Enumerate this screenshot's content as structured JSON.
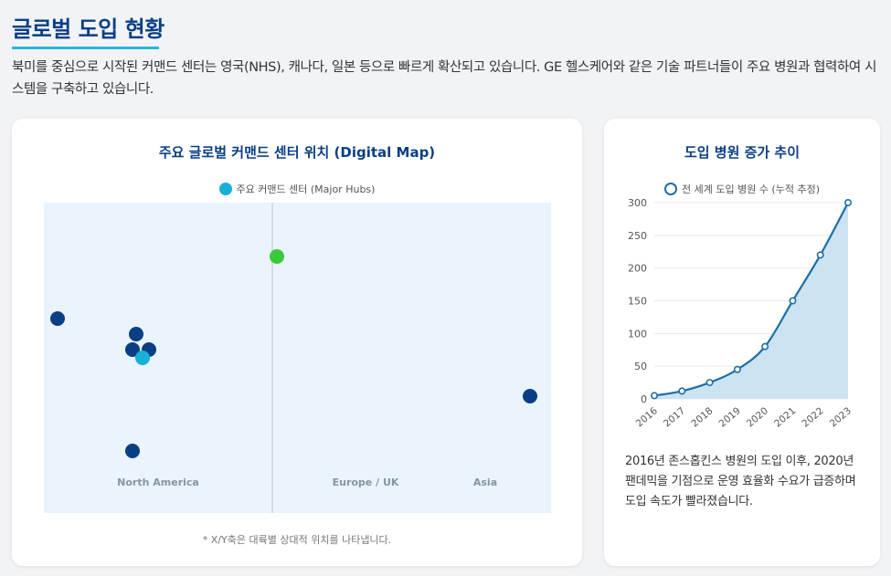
{
  "page": {
    "title": "글로벌 도입 현황",
    "intro": "북미를 중심으로 시작된 커맨드 센터는 영국(NHS), 캐나다, 일본 등으로 빠르게 확산되고 있습니다. GE 헬스케어와 같은 기술 파트너들이 주요 병원과 협력하여 시스템을 구축하고 있습니다."
  },
  "map_card": {
    "title": "주요 글로벌 커맨드 센터 위치 (Digital Map)",
    "legend": "주요 커맨드 센터 (Major Hubs)",
    "regions": [
      "North America",
      "Europe / UK",
      "Asia"
    ],
    "note": "* X/Y축은 대륙별 상대적 위치를 나타냅니다.",
    "colors": {
      "hub_primary": "#0a3f86",
      "hub_legend": "#16b0d8",
      "hub_highlight": "#3cc83c",
      "background": "#eaf4fc"
    }
  },
  "trend_card": {
    "title": "도입 병원 증가 추이",
    "description": "2016년 존스홉킨스 병원의 도입 이후, 2020년 팬데믹을 기점으로 운영 효율화 수요가 급증하며 도입 속도가 빨라졌습니다."
  },
  "chart_data": {
    "type": "area",
    "x": [
      "2016",
      "2017",
      "2018",
      "2019",
      "2020",
      "2021",
      "2022",
      "2023"
    ],
    "series": [
      {
        "name": "전 세계 도입 병원 수 (누적 추정)",
        "values": [
          5,
          12,
          25,
          45,
          80,
          150,
          220,
          300
        ]
      }
    ],
    "ylim": [
      0,
      300
    ],
    "yticks": [
      0,
      50,
      100,
      150,
      200,
      250,
      300
    ],
    "legend_position": "top",
    "grid": true,
    "colors": {
      "line": "#1d6ea8",
      "fill": "#c9e2f0"
    }
  }
}
